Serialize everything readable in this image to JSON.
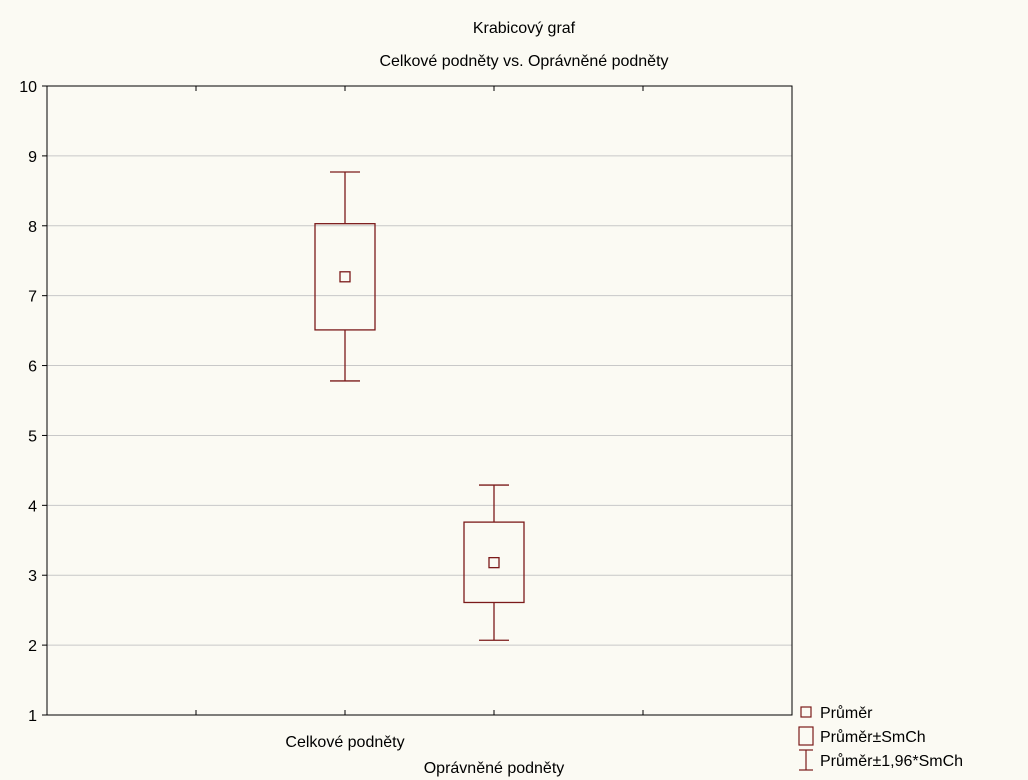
{
  "chart_data": {
    "type": "box",
    "title": "Krabicový graf",
    "subtitle": "Celkové podněty vs. Oprávněné podněty",
    "xlabel": "",
    "ylabel": "",
    "ylim": [
      1,
      10
    ],
    "yticks": [
      1,
      2,
      3,
      4,
      5,
      6,
      7,
      8,
      9,
      10
    ],
    "grid": true,
    "legend_position": "bottom-right",
    "colors": {
      "box": "#7b1a1a",
      "grid": "#c8c8c8",
      "frame": "#000000",
      "background": "#fbfaf3"
    },
    "categories": [
      "Celkové podněty",
      "Oprávněné podněty"
    ],
    "boxes": [
      {
        "name": "Celkové podněty",
        "mean": 7.27,
        "box_low": 6.51,
        "box_high": 8.03,
        "whisker_low": 5.78,
        "whisker_high": 8.77
      },
      {
        "name": "Oprávněné podněty",
        "mean": 3.18,
        "box_low": 2.61,
        "box_high": 3.76,
        "whisker_low": 2.07,
        "whisker_high": 4.29
      }
    ],
    "legend": [
      "Průměr",
      "Průměr±SmCh",
      "Průměr±1,96*SmCh"
    ]
  }
}
